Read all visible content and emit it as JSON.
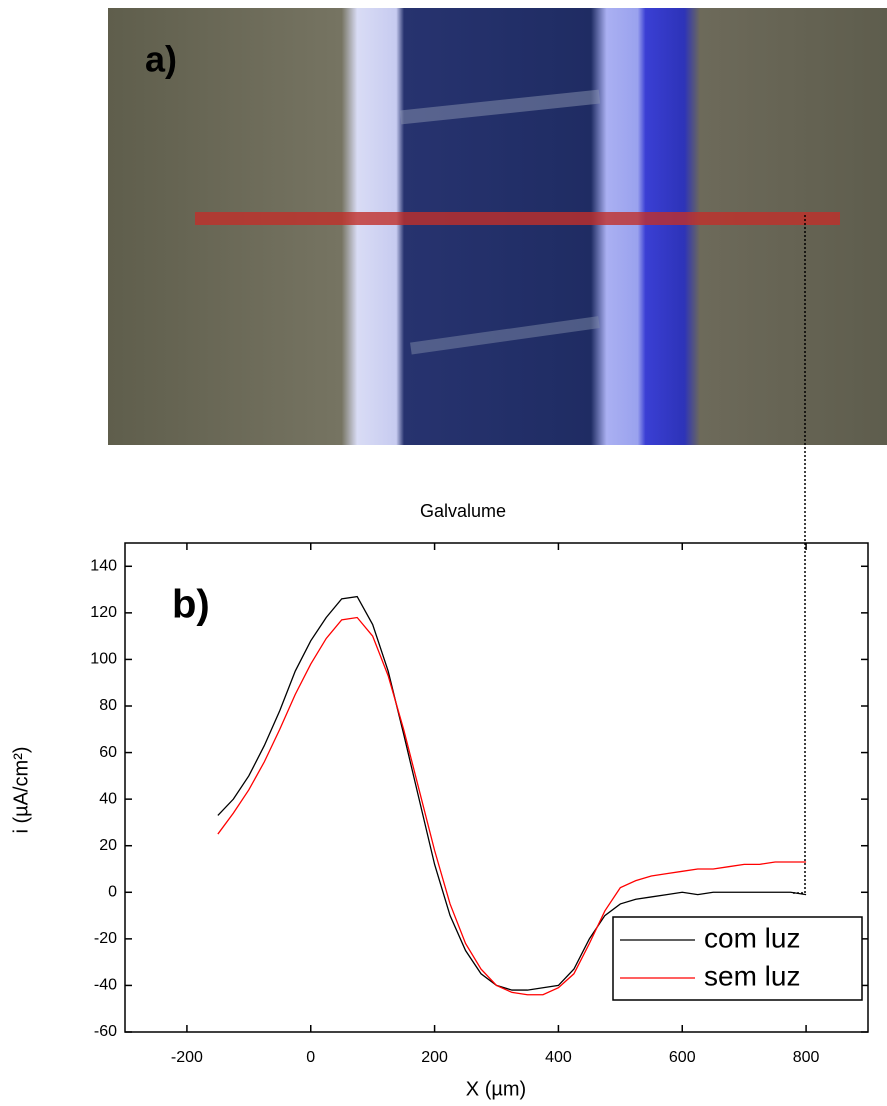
{
  "chart_data": {
    "type": "line",
    "title": "Galvalume",
    "panel_labels": [
      "a)",
      "b)"
    ],
    "x_label": "X (µm)",
    "y_label": "i (µA/cm²)",
    "x": [
      -150,
      -125,
      -100,
      -75,
      -50,
      -25,
      0,
      25,
      50,
      75,
      100,
      125,
      150,
      175,
      200,
      225,
      250,
      275,
      300,
      325,
      350,
      375,
      400,
      425,
      450,
      475,
      500,
      525,
      550,
      575,
      600,
      625,
      650,
      675,
      700,
      725,
      750,
      775,
      800
    ],
    "series": [
      {
        "name": "com luz",
        "color": "#000000",
        "values": [
          33,
          40,
          50,
          63,
          78,
          95,
          108,
          118,
          126,
          127,
          115,
          95,
          68,
          40,
          12,
          -10,
          -25,
          -35,
          -40,
          -42,
          -42,
          -41,
          -40,
          -33,
          -20,
          -10,
          -5,
          -3,
          -2,
          -1,
          0,
          -1,
          0,
          0,
          0,
          0,
          0,
          0,
          -1
        ]
      },
      {
        "name": "sem luz",
        "color": "#ff0000",
        "values": [
          25,
          34,
          44,
          56,
          70,
          85,
          98,
          109,
          117,
          118,
          110,
          93,
          70,
          44,
          18,
          -5,
          -22,
          -33,
          -40,
          -43,
          -44,
          -44,
          -41,
          -35,
          -22,
          -8,
          2,
          5,
          7,
          8,
          9,
          10,
          10,
          11,
          12,
          12,
          13,
          13,
          13
        ]
      }
    ],
    "xlim": [
      -300,
      900
    ],
    "xticks": [
      -200,
      0,
      200,
      400,
      600,
      800
    ],
    "ylim": [
      -60,
      150
    ],
    "yticks": [
      -60,
      -40,
      -20,
      0,
      20,
      40,
      60,
      80,
      100,
      120,
      140
    ],
    "grid": false,
    "legend": "lower right"
  }
}
